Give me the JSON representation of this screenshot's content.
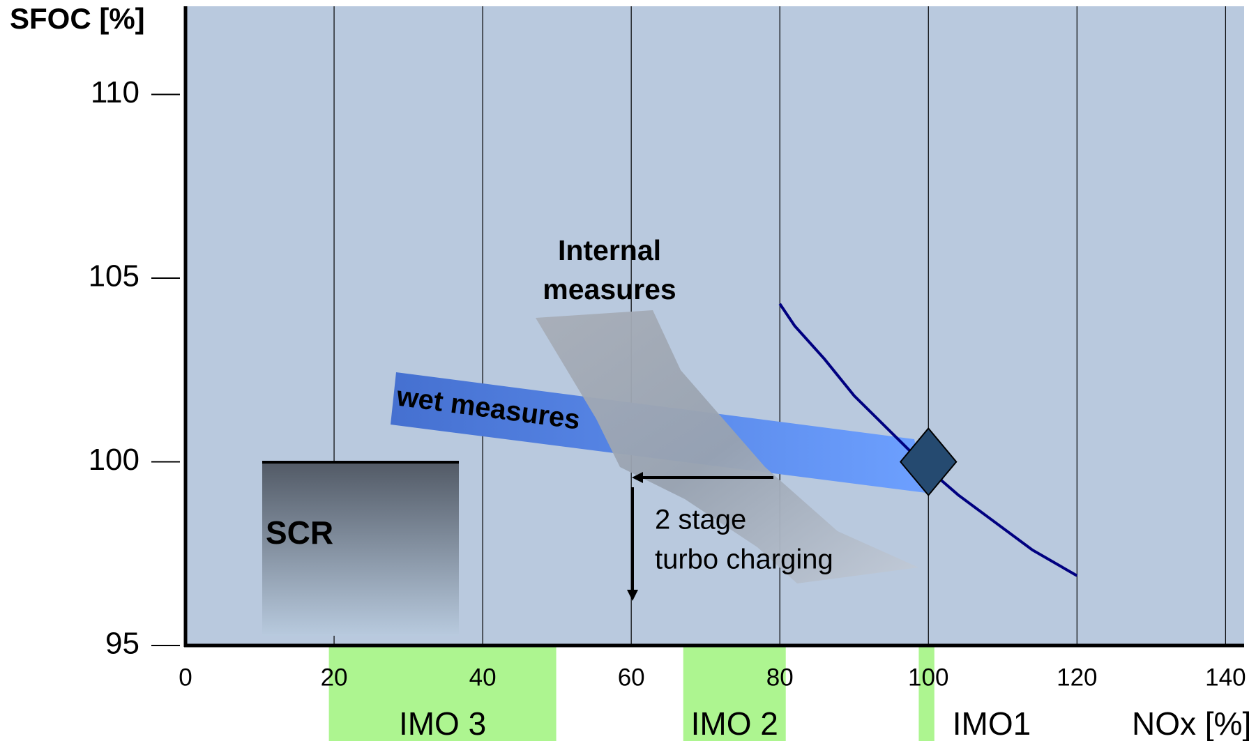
{
  "chart_data": {
    "type": "line",
    "y_label": "SFOC [%]",
    "x_label": "NOx [%]",
    "xlim": [
      0,
      142.5
    ],
    "ylim": [
      95,
      112.4
    ],
    "xticks": [
      0,
      20,
      40,
      60,
      80,
      100,
      120,
      140
    ],
    "yticks": [
      95,
      100,
      105,
      110
    ],
    "grid": "x",
    "series": [
      {
        "color": "#000080",
        "x": [
          80,
          82,
          86,
          90,
          93,
          97,
          100,
          104,
          108,
          114,
          120
        ],
        "values": [
          104.3,
          103.7,
          102.8,
          101.8,
          101.2,
          100.4,
          99.8,
          99.1,
          98.5,
          97.6,
          96.9
        ]
      }
    ],
    "point": {
      "x": 100,
      "y": 100,
      "color": "#254a70"
    },
    "regions": [
      {
        "label": "IMO 3",
        "x": [
          19.3,
          49.9
        ],
        "color": "#adf590"
      },
      {
        "label": "IMO 2",
        "x": [
          67,
          80.8
        ],
        "color": "#adf590"
      },
      {
        "label": "IMO1",
        "x": [
          98.7,
          100.8
        ],
        "color": "#adf590"
      }
    ],
    "annotations": {
      "scr": "SCR",
      "wet": "wet measures",
      "internal": [
        "Internal",
        "measures"
      ],
      "turbo": [
        "2 stage",
        "turbo charging"
      ]
    }
  }
}
